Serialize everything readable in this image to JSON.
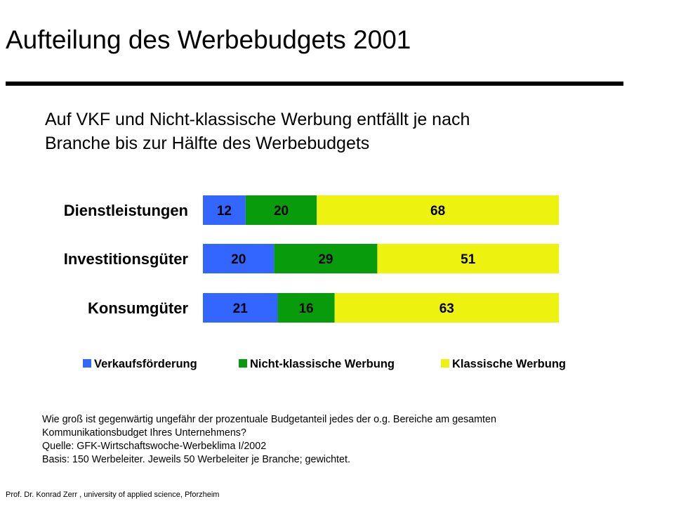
{
  "slide": {
    "title": "Aufteilung des Werbebudgets 2001",
    "subtitle_lines": [
      "Auf VKF und Nicht-klassische Werbung entfällt je nach",
      "Branche bis zur Hälfte des Werbebudgets"
    ],
    "footnote_lines": [
      "Wie groß ist gegenwärtig ungefähr der prozentuale Budgetanteil jedes der o.g. Bereiche am gesamten",
      "Kommunikationsbudget Ihres Unternehmens?",
      "Quelle: GFK-Wirtschaftswoche-Werbeklima I/2002",
      "Basis: 150 Werbeleiter. Jeweils 50 Werbeleiter je Branche; gewichtet."
    ],
    "footer": "Prof. Dr. Konrad Zerr ,  university of applied science, Pforzheim"
  },
  "chart_data": {
    "type": "bar",
    "orientation": "horizontal",
    "stacked": true,
    "categories": [
      "Dienstleistungen",
      "Investitionsgüter",
      "Konsumgüter"
    ],
    "series": [
      {
        "name": "Verkaufsförderung",
        "color": "#3366ff",
        "values": [
          12,
          20,
          21
        ]
      },
      {
        "name": "Nicht-klassische Werbung",
        "color": "#089c0d",
        "values": [
          20,
          29,
          16
        ]
      },
      {
        "name": "Klassische Werbung",
        "color": "#eef20f",
        "values": [
          68,
          51,
          63
        ]
      }
    ],
    "xlim": [
      0,
      100
    ],
    "data_labels": true,
    "legend_position": "bottom",
    "grid": false
  }
}
